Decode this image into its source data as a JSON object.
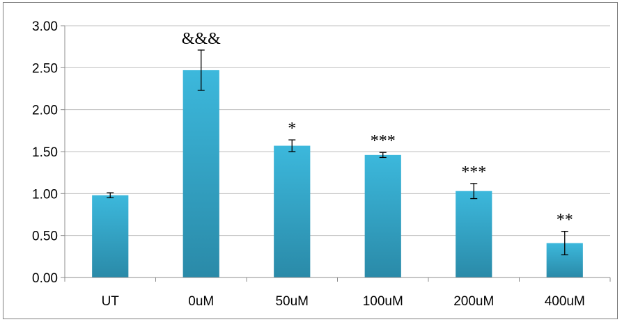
{
  "chart_data": {
    "type": "bar",
    "title": "",
    "xlabel": "",
    "ylabel": "",
    "categories": [
      "UT",
      "0uM",
      "50uM",
      "100uM",
      "200uM",
      "400uM"
    ],
    "values": [
      0.98,
      2.47,
      1.57,
      1.46,
      1.03,
      0.41
    ],
    "errors": [
      0.03,
      0.24,
      0.07,
      0.03,
      0.09,
      0.14
    ],
    "annotations": [
      "",
      "&&&",
      "*",
      "***",
      "***",
      "**"
    ],
    "ylim": [
      0,
      3
    ],
    "yticks": [
      "0.00",
      "0.50",
      "1.00",
      "1.50",
      "2.00",
      "2.50",
      "3.00"
    ],
    "grid": true,
    "legend": "none",
    "colors": {
      "bar_top": "#3cb8dc",
      "bar_bottom": "#2a8aa8",
      "grid": "#bfbfbf",
      "axis": "#8c8c8c",
      "error": "#000000"
    }
  }
}
